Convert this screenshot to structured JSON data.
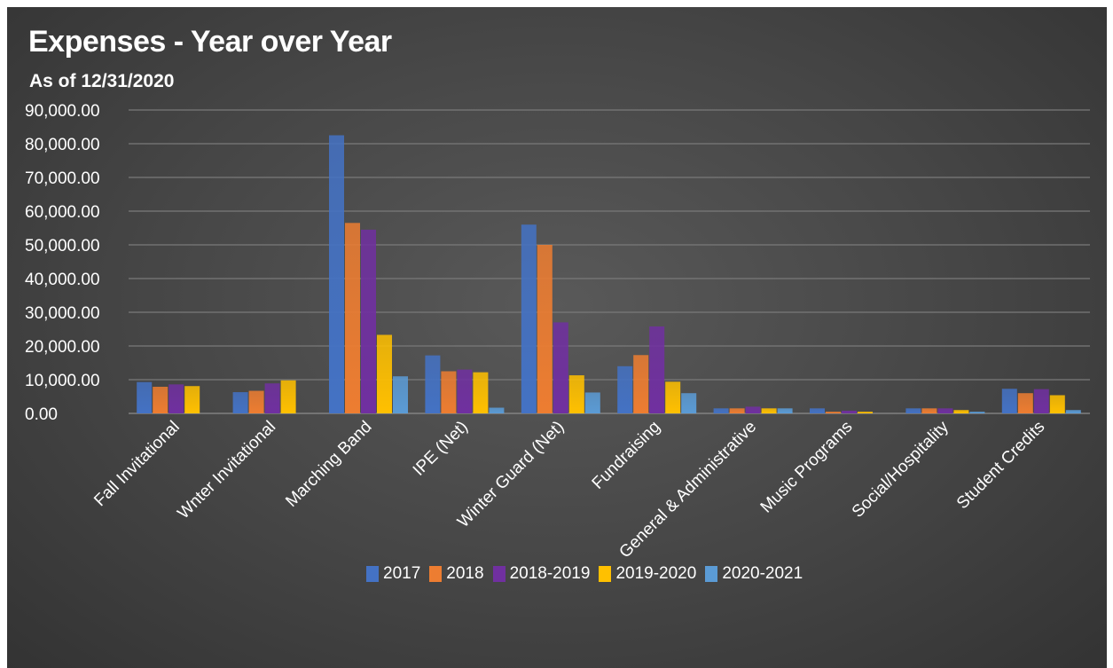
{
  "chart_data": {
    "type": "bar",
    "title": "Expenses - Year over Year",
    "subtitle": "As of 12/31/2020",
    "xlabel": "",
    "ylabel": "",
    "ylim": [
      0,
      90000
    ],
    "yticks": [
      "90,000.00",
      "80,000.00",
      "70,000.00",
      "60,000.00",
      "50,000.00",
      "40,000.00",
      "30,000.00",
      "20,000.00",
      "10,000.00",
      "0.00"
    ],
    "ytick_values": [
      90000,
      80000,
      70000,
      60000,
      50000,
      40000,
      30000,
      20000,
      10000,
      0
    ],
    "grid": true,
    "legend_position": "bottom",
    "categories": [
      "Fall Invitational",
      "Wnter Invitational",
      "Marching Band",
      "IPE (Net)",
      "Winter Guard (Net)",
      "Fundraising",
      "General & Administrative",
      "Music Programs",
      "Social/Hospitality",
      "Student Credits"
    ],
    "series": [
      {
        "name": "2017",
        "color": "#4472C4",
        "values": [
          9300,
          6300,
          82500,
          17200,
          56000,
          14000,
          1500,
          1500,
          1500,
          7300
        ]
      },
      {
        "name": "2018",
        "color": "#ED7D31",
        "values": [
          7900,
          6700,
          56500,
          12500,
          50000,
          17300,
          1500,
          500,
          1500,
          6000
        ]
      },
      {
        "name": "2018-2019",
        "color": "#7030A0",
        "values": [
          8600,
          8900,
          54500,
          13000,
          27000,
          25800,
          2000,
          800,
          1500,
          7200
        ]
      },
      {
        "name": "2019-2020",
        "color": "#FFC000",
        "values": [
          8100,
          9800,
          23300,
          12200,
          11300,
          9400,
          1500,
          500,
          1000,
          5400
        ]
      },
      {
        "name": "2020-2021",
        "color": "#5B9BD5",
        "values": [
          0,
          0,
          11000,
          1700,
          6200,
          6000,
          1500,
          0,
          500,
          1000
        ]
      }
    ]
  }
}
